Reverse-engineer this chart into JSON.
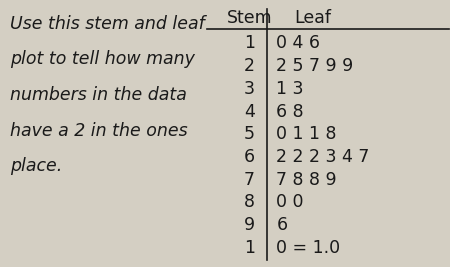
{
  "question_text": [
    "Use this stem and leaf",
    "plot to tell how many",
    "numbers in the data",
    "have a 2 in the ones",
    "place."
  ],
  "stem_header": "Stem",
  "leaf_header": "Leaf",
  "stems": [
    "1",
    "2",
    "3",
    "4",
    "5",
    "6",
    "7",
    "8",
    "9"
  ],
  "leaves": [
    "0 4 6",
    "2 5 7 9 9",
    "1 3",
    "6 8",
    "0 1 1 8",
    "2 2 2 3 4 7",
    "7 8 8 9",
    "0 0",
    "6"
  ],
  "key_stem": "1",
  "key_leaf": "0 = 1.0",
  "bg_color": "#d4cfc3",
  "text_color": "#1a1a1a",
  "question_font_size": 12.5,
  "table_font_size": 12.5,
  "header_font_size": 12.5
}
